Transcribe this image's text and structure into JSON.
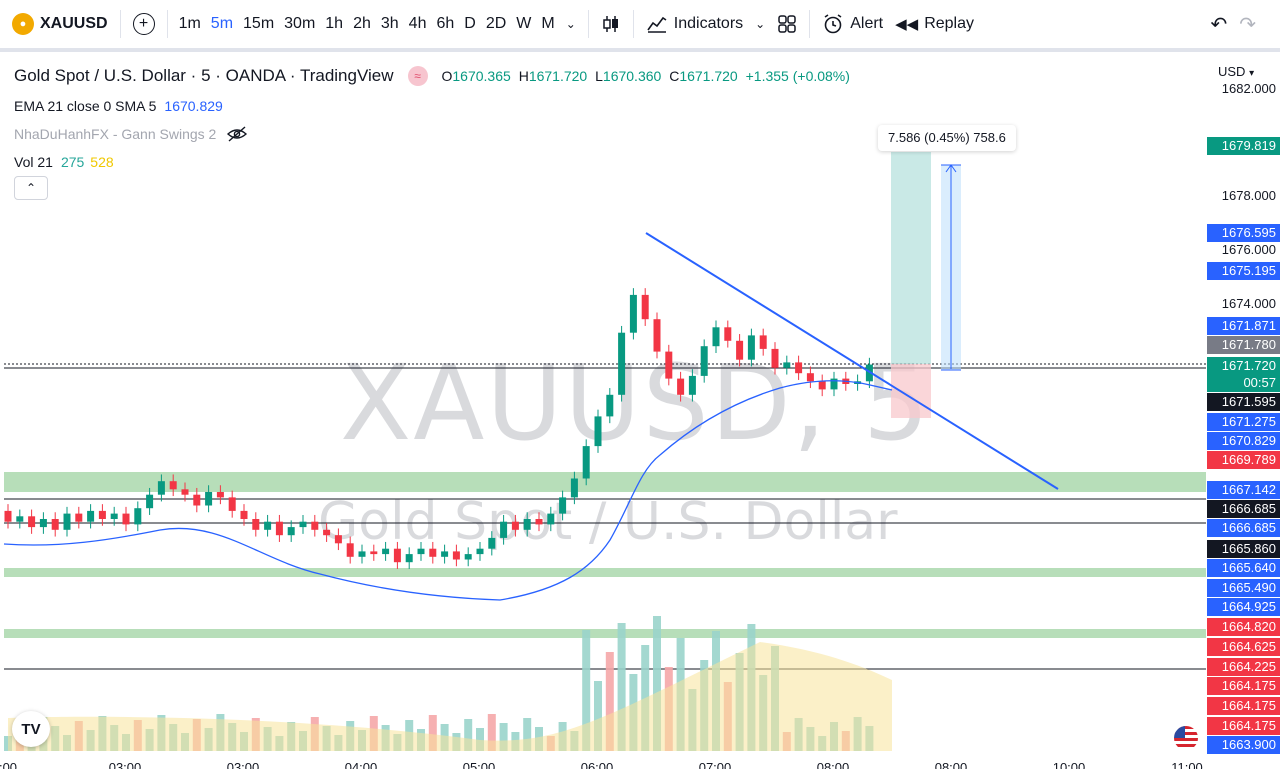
{
  "toolbar": {
    "symbol": "XAUUSD",
    "intervals": [
      "1m",
      "5m",
      "15m",
      "30m",
      "1h",
      "2h",
      "3h",
      "4h",
      "6h",
      "D",
      "2D",
      "W",
      "M"
    ],
    "active_interval": "5m",
    "indicators_label": "Indicators",
    "alert_label": "Alert",
    "replay_label": "Replay"
  },
  "legend": {
    "title": "Gold Spot / U.S. Dollar · 5 · OANDA · TradingView",
    "o_label": "O",
    "o": "1670.365",
    "h_label": "H",
    "h": "1671.720",
    "l_label": "L",
    "l": "1670.360",
    "c_label": "C",
    "c": "1671.720",
    "change": "+1.355 (+0.08%)",
    "ema_label": "EMA 21 close 0 SMA 5",
    "ema_value": "1670.829",
    "gann_label": "NhaDuHanhFX - Gann Swings 2",
    "vol_label": "Vol 21",
    "vol_a": "275",
    "vol_b": "528"
  },
  "watermark": {
    "line1": "XAUUSD, 5",
    "line2": "Gold Spot / U.S. Dollar"
  },
  "measure": {
    "text": "7.586 (0.45%) 758.6"
  },
  "price_scale": {
    "currency": "USD",
    "plain_ticks": [
      "1682.000",
      "1678.000",
      "1676.000",
      "1674.000"
    ],
    "labels": [
      {
        "text": "1679.819",
        "bg": "#089981"
      },
      {
        "text": "1676.595",
        "bg": "#2962ff"
      },
      {
        "text": "1675.195",
        "bg": "#2962ff"
      },
      {
        "text": "1671.871",
        "bg": "#2962ff"
      },
      {
        "text": "1671.780",
        "bg": "#787b86"
      },
      {
        "text": "1671.720",
        "bg": "#089981"
      },
      {
        "text": "00:57",
        "bg": "#089981"
      },
      {
        "text": "1671.595",
        "bg": "#131722"
      },
      {
        "text": "1671.275",
        "bg": "#2962ff"
      },
      {
        "text": "1670.829",
        "bg": "#2962ff"
      },
      {
        "text": "1669.789",
        "bg": "#f23645"
      },
      {
        "text": "1667.142",
        "bg": "#2962ff"
      },
      {
        "text": "1666.685",
        "bg": "#131722"
      },
      {
        "text": "1666.685",
        "bg": "#2962ff"
      },
      {
        "text": "1665.860",
        "bg": "#131722"
      },
      {
        "text": "1665.640",
        "bg": "#2962ff"
      },
      {
        "text": "1665.490",
        "bg": "#2962ff"
      },
      {
        "text": "1664.925",
        "bg": "#2962ff"
      },
      {
        "text": "1664.820",
        "bg": "#f23645"
      },
      {
        "text": "1664.625",
        "bg": "#f23645"
      },
      {
        "text": "1664.225",
        "bg": "#f23645"
      },
      {
        "text": "1664.175",
        "bg": "#f23645"
      },
      {
        "text": "1664.175",
        "bg": "#f23645"
      },
      {
        "text": "1664.175",
        "bg": "#f23645"
      },
      {
        "text": "1663.900",
        "bg": "#2962ff"
      }
    ]
  },
  "time_axis": [
    ":00",
    "03:00",
    "03:00",
    "04:00",
    "05:00",
    "06:00",
    "07:00",
    "08:00",
    "08:00",
    "10:00",
    "11:00"
  ],
  "colors": {
    "up": "#089981",
    "down": "#f23645",
    "ema": "#2962ff",
    "zone": "#a5d6a7",
    "trendline": "#2962ff"
  }
}
